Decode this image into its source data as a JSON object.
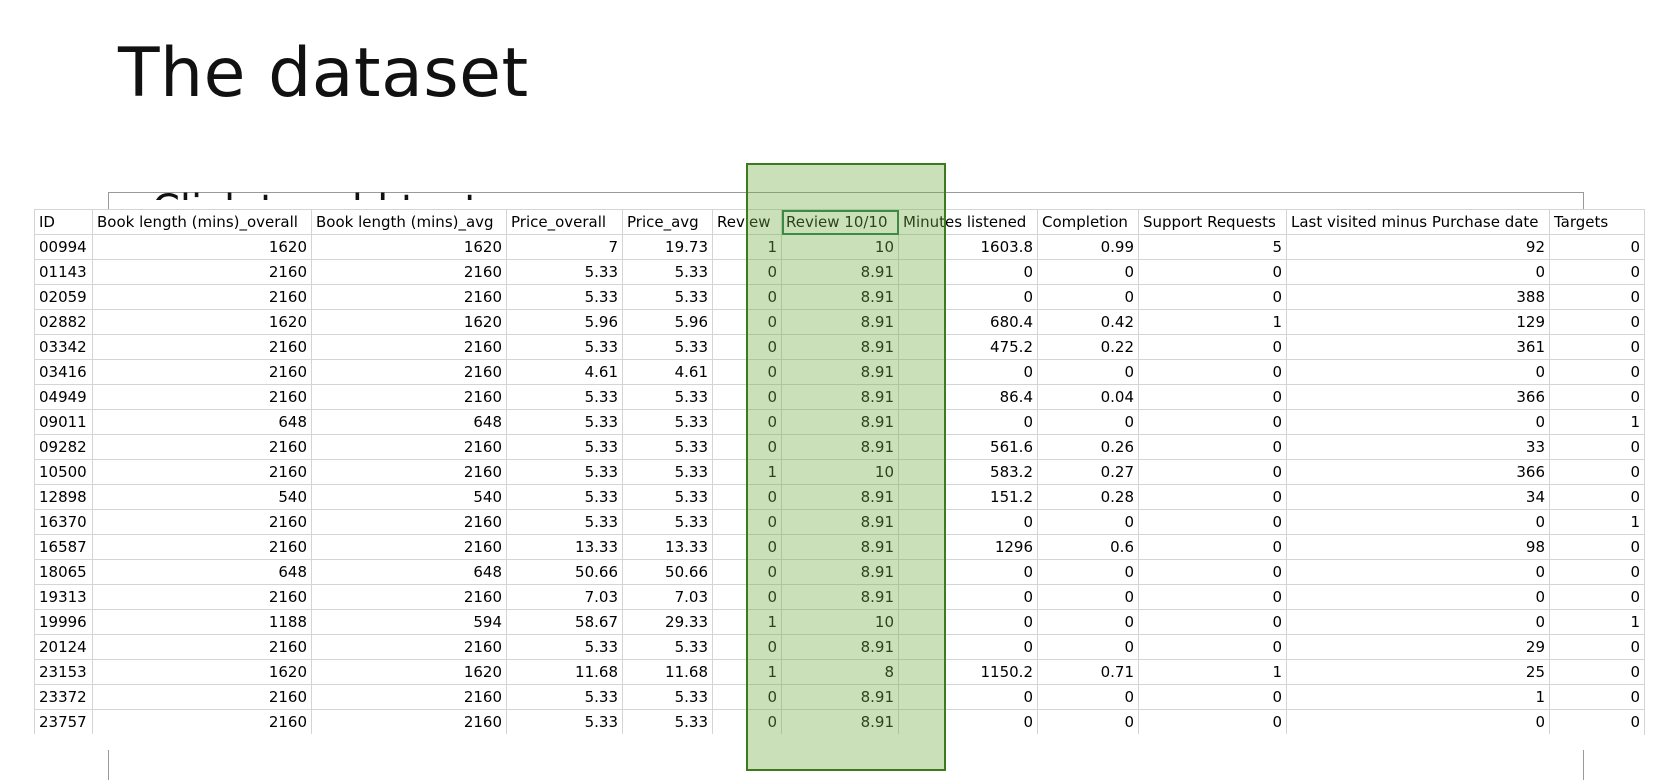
{
  "slide": {
    "title": "The dataset",
    "ghost_text": "Click to add text"
  },
  "colors": {
    "highlight_fill": "#70AD47",
    "highlight_border": "#3d7a1e",
    "grid": "#d4d4d4"
  },
  "table": {
    "headers": [
      "ID",
      "Book length (mins)_overall",
      "Book length (mins)_avg",
      "Price_overall",
      "Price_avg",
      "Review",
      "Review 10/10",
      "Minutes listened",
      "Completion",
      "Support Requests",
      "Last visited minus Purchase date",
      "Targets"
    ],
    "rows": [
      [
        "00994",
        "1620",
        "1620",
        "7",
        "19.73",
        "1",
        "10",
        "1603.8",
        "0.99",
        "5",
        "92",
        "0"
      ],
      [
        "01143",
        "2160",
        "2160",
        "5.33",
        "5.33",
        "0",
        "8.91",
        "0",
        "0",
        "0",
        "0",
        "0"
      ],
      [
        "02059",
        "2160",
        "2160",
        "5.33",
        "5.33",
        "0",
        "8.91",
        "0",
        "0",
        "0",
        "388",
        "0"
      ],
      [
        "02882",
        "1620",
        "1620",
        "5.96",
        "5.96",
        "0",
        "8.91",
        "680.4",
        "0.42",
        "1",
        "129",
        "0"
      ],
      [
        "03342",
        "2160",
        "2160",
        "5.33",
        "5.33",
        "0",
        "8.91",
        "475.2",
        "0.22",
        "0",
        "361",
        "0"
      ],
      [
        "03416",
        "2160",
        "2160",
        "4.61",
        "4.61",
        "0",
        "8.91",
        "0",
        "0",
        "0",
        "0",
        "0"
      ],
      [
        "04949",
        "2160",
        "2160",
        "5.33",
        "5.33",
        "0",
        "8.91",
        "86.4",
        "0.04",
        "0",
        "366",
        "0"
      ],
      [
        "09011",
        "648",
        "648",
        "5.33",
        "5.33",
        "0",
        "8.91",
        "0",
        "0",
        "0",
        "0",
        "1"
      ],
      [
        "09282",
        "2160",
        "2160",
        "5.33",
        "5.33",
        "0",
        "8.91",
        "561.6",
        "0.26",
        "0",
        "33",
        "0"
      ],
      [
        "10500",
        "2160",
        "2160",
        "5.33",
        "5.33",
        "1",
        "10",
        "583.2",
        "0.27",
        "0",
        "366",
        "0"
      ],
      [
        "12898",
        "540",
        "540",
        "5.33",
        "5.33",
        "0",
        "8.91",
        "151.2",
        "0.28",
        "0",
        "34",
        "0"
      ],
      [
        "16370",
        "2160",
        "2160",
        "5.33",
        "5.33",
        "0",
        "8.91",
        "0",
        "0",
        "0",
        "0",
        "1"
      ],
      [
        "16587",
        "2160",
        "2160",
        "13.33",
        "13.33",
        "0",
        "8.91",
        "1296",
        "0.6",
        "0",
        "98",
        "0"
      ],
      [
        "18065",
        "648",
        "648",
        "50.66",
        "50.66",
        "0",
        "8.91",
        "0",
        "0",
        "0",
        "0",
        "0"
      ],
      [
        "19313",
        "2160",
        "2160",
        "7.03",
        "7.03",
        "0",
        "8.91",
        "0",
        "0",
        "0",
        "0",
        "0"
      ],
      [
        "19996",
        "1188",
        "594",
        "58.67",
        "29.33",
        "1",
        "10",
        "0",
        "0",
        "0",
        "0",
        "1"
      ],
      [
        "20124",
        "2160",
        "2160",
        "5.33",
        "5.33",
        "0",
        "8.91",
        "0",
        "0",
        "0",
        "29",
        "0"
      ],
      [
        "23153",
        "1620",
        "1620",
        "11.68",
        "11.68",
        "1",
        "8",
        "1150.2",
        "0.71",
        "1",
        "25",
        "0"
      ],
      [
        "23372",
        "2160",
        "2160",
        "5.33",
        "5.33",
        "0",
        "8.91",
        "0",
        "0",
        "0",
        "1",
        "0"
      ],
      [
        "23757",
        "2160",
        "2160",
        "5.33",
        "5.33",
        "0",
        "8.91",
        "0",
        "0",
        "0",
        "0",
        "0"
      ]
    ]
  }
}
